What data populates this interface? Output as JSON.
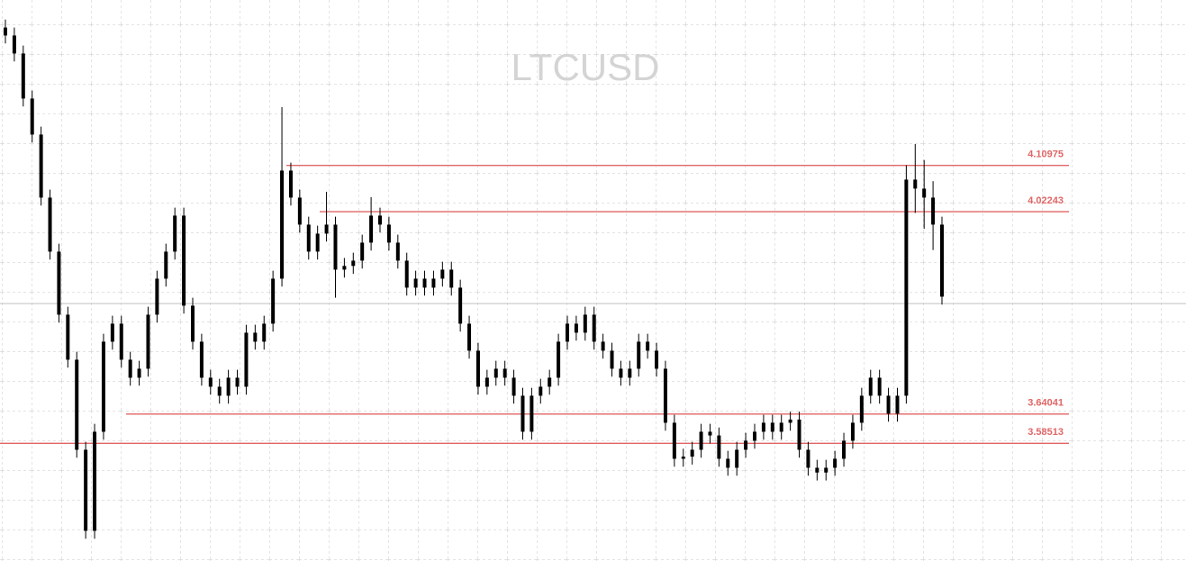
{
  "chart_data": {
    "type": "candlestick",
    "title": "LTCUSD",
    "ylim": [
      3.363,
      4.422
    ],
    "candle_color": "#000000",
    "level_color": "#e06666",
    "current_price": 3.849,
    "levels": [
      {
        "value": 4.10975,
        "label": "4.10975"
      },
      {
        "value": 4.02243,
        "label": "4.02243"
      },
      {
        "value": 3.64041,
        "label": "3.64041"
      },
      {
        "value": 3.58513,
        "label": "3.58513"
      }
    ],
    "open": [
      4.37,
      4.355,
      4.321,
      4.236,
      4.168,
      4.049,
      3.947,
      3.828,
      3.743,
      3.573,
      3.42,
      3.607,
      3.777,
      3.811,
      3.743,
      3.709,
      3.726,
      3.828,
      3.896,
      3.947,
      4.015,
      3.845,
      3.777,
      3.709,
      3.692,
      3.675,
      3.709,
      3.692,
      3.794,
      3.777,
      3.811,
      3.896,
      4.1,
      4.049,
      3.998,
      3.947,
      3.981,
      3.998,
      3.913,
      3.92,
      3.93,
      3.964,
      4.015,
      3.998,
      3.964,
      3.93,
      3.879,
      3.896,
      3.879,
      3.896,
      3.913,
      3.879,
      3.811,
      3.76,
      3.692,
      3.709,
      3.726,
      3.709,
      3.675,
      3.607,
      3.675,
      3.692,
      3.709,
      3.777,
      3.811,
      3.794,
      3.828,
      3.777,
      3.76,
      3.726,
      3.709,
      3.726,
      3.777,
      3.76,
      3.726,
      3.624,
      3.556,
      3.56,
      3.573,
      3.607,
      3.6,
      3.556,
      3.539,
      3.573,
      3.59,
      3.607,
      3.624,
      3.607,
      3.624,
      3.63,
      3.573,
      3.539,
      3.53,
      3.539,
      3.556,
      3.59,
      3.624,
      3.675,
      3.709,
      3.675,
      3.641,
      3.675,
      4.083,
      4.066,
      4.049,
      3.998
    ],
    "close": [
      4.355,
      4.321,
      4.236,
      4.168,
      4.049,
      3.947,
      3.828,
      3.743,
      3.573,
      3.42,
      3.607,
      3.777,
      3.811,
      3.743,
      3.709,
      3.726,
      3.828,
      3.896,
      3.947,
      4.015,
      3.845,
      3.777,
      3.709,
      3.692,
      3.675,
      3.709,
      3.692,
      3.794,
      3.777,
      3.811,
      3.896,
      4.1,
      4.049,
      3.998,
      3.947,
      3.981,
      3.998,
      3.913,
      3.92,
      3.93,
      3.964,
      4.015,
      3.998,
      3.964,
      3.93,
      3.879,
      3.896,
      3.879,
      3.896,
      3.913,
      3.879,
      3.811,
      3.76,
      3.692,
      3.709,
      3.726,
      3.709,
      3.675,
      3.607,
      3.675,
      3.692,
      3.709,
      3.777,
      3.811,
      3.794,
      3.828,
      3.777,
      3.76,
      3.726,
      3.709,
      3.726,
      3.777,
      3.76,
      3.726,
      3.624,
      3.556,
      3.56,
      3.573,
      3.607,
      3.6,
      3.556,
      3.539,
      3.573,
      3.59,
      3.607,
      3.624,
      3.607,
      3.624,
      3.63,
      3.573,
      3.539,
      3.53,
      3.539,
      3.556,
      3.59,
      3.624,
      3.675,
      3.709,
      3.675,
      3.641,
      3.675,
      4.083,
      4.066,
      4.049,
      3.998,
      3.862
    ],
    "high": [
      4.385,
      4.37,
      4.336,
      4.251,
      4.183,
      4.064,
      3.962,
      3.843,
      3.758,
      3.588,
      3.622,
      3.792,
      3.826,
      3.826,
      3.758,
      3.741,
      3.843,
      3.911,
      3.962,
      4.03,
      4.03,
      3.86,
      3.792,
      3.724,
      3.707,
      3.724,
      3.724,
      3.809,
      3.809,
      3.826,
      3.911,
      4.22,
      4.115,
      4.064,
      4.013,
      3.996,
      4.06,
      4.013,
      3.935,
      3.945,
      3.979,
      4.05,
      4.03,
      4.013,
      3.979,
      3.945,
      3.911,
      3.911,
      3.911,
      3.928,
      3.928,
      3.894,
      3.826,
      3.775,
      3.724,
      3.741,
      3.741,
      3.724,
      3.69,
      3.69,
      3.707,
      3.724,
      3.792,
      3.826,
      3.826,
      3.843,
      3.843,
      3.792,
      3.775,
      3.741,
      3.741,
      3.792,
      3.792,
      3.775,
      3.741,
      3.639,
      3.575,
      3.588,
      3.622,
      3.622,
      3.615,
      3.571,
      3.588,
      3.605,
      3.622,
      3.639,
      3.639,
      3.639,
      3.645,
      3.645,
      3.588,
      3.554,
      3.554,
      3.571,
      3.605,
      3.639,
      3.69,
      3.724,
      3.724,
      3.69,
      3.69,
      4.11,
      4.15,
      4.12,
      4.08,
      4.013
    ],
    "low": [
      4.34,
      4.306,
      4.221,
      4.153,
      4.034,
      3.932,
      3.813,
      3.728,
      3.558,
      3.405,
      3.405,
      3.592,
      3.762,
      3.728,
      3.694,
      3.694,
      3.711,
      3.813,
      3.881,
      3.932,
      3.83,
      3.762,
      3.694,
      3.677,
      3.66,
      3.66,
      3.677,
      3.677,
      3.762,
      3.762,
      3.796,
      3.881,
      4.034,
      3.983,
      3.932,
      3.932,
      3.966,
      3.86,
      3.898,
      3.905,
      3.915,
      3.949,
      3.983,
      3.949,
      3.915,
      3.864,
      3.864,
      3.864,
      3.864,
      3.881,
      3.864,
      3.796,
      3.745,
      3.677,
      3.677,
      3.694,
      3.694,
      3.66,
      3.592,
      3.592,
      3.66,
      3.677,
      3.694,
      3.762,
      3.779,
      3.779,
      3.762,
      3.745,
      3.711,
      3.694,
      3.694,
      3.711,
      3.745,
      3.711,
      3.609,
      3.541,
      3.541,
      3.545,
      3.558,
      3.585,
      3.541,
      3.524,
      3.524,
      3.558,
      3.575,
      3.592,
      3.592,
      3.592,
      3.609,
      3.558,
      3.524,
      3.515,
      3.515,
      3.524,
      3.541,
      3.575,
      3.609,
      3.66,
      3.66,
      3.626,
      3.626,
      3.66,
      4.02,
      3.99,
      3.95,
      3.847
    ]
  }
}
